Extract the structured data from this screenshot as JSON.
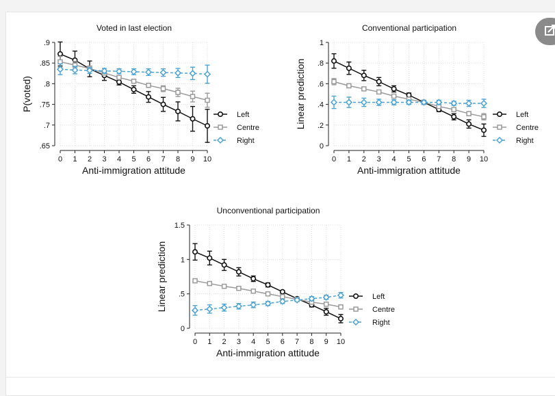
{
  "colors": {
    "left": "#111111",
    "centre": "#9a9a9a",
    "right": "#4aa3d4",
    "grid": "#d4d4d4"
  },
  "chart_data": [
    {
      "type": "line",
      "title": "Voted in last election",
      "xlabel": "Anti-immigration attitude",
      "ylabel": "P(voted)",
      "x": [
        0,
        1,
        2,
        3,
        4,
        5,
        6,
        7,
        8,
        9,
        10
      ],
      "xlim": [
        0,
        10
      ],
      "ylim": [
        0.65,
        0.9
      ],
      "yticks": [
        0.65,
        0.7,
        0.75,
        0.8,
        0.85,
        0.9
      ],
      "ytick_labels": [
        ".65",
        ".7",
        ".75",
        ".8",
        ".85",
        ".9"
      ],
      "legend": "right",
      "series": [
        {
          "name": "Left",
          "values": [
            0.872,
            0.857,
            0.836,
            0.82,
            0.804,
            0.786,
            0.768,
            0.75,
            0.733,
            0.715,
            0.698
          ],
          "lower": [
            0.843,
            0.835,
            0.817,
            0.808,
            0.797,
            0.777,
            0.755,
            0.733,
            0.71,
            0.685,
            0.658
          ],
          "upper": [
            0.901,
            0.879,
            0.855,
            0.832,
            0.811,
            0.795,
            0.781,
            0.767,
            0.756,
            0.745,
            0.738
          ]
        },
        {
          "name": "Centre",
          "values": [
            0.853,
            0.845,
            0.837,
            0.826,
            0.815,
            0.806,
            0.796,
            0.788,
            0.779,
            0.769,
            0.76
          ],
          "lower": [
            0.84,
            0.836,
            0.831,
            0.821,
            0.811,
            0.802,
            0.791,
            0.781,
            0.769,
            0.756,
            0.743
          ],
          "upper": [
            0.866,
            0.854,
            0.843,
            0.831,
            0.819,
            0.81,
            0.801,
            0.795,
            0.789,
            0.782,
            0.777
          ]
        },
        {
          "name": "Right",
          "values": [
            0.835,
            0.833,
            0.832,
            0.831,
            0.83,
            0.829,
            0.828,
            0.827,
            0.826,
            0.825,
            0.823
          ],
          "lower": [
            0.822,
            0.824,
            0.825,
            0.825,
            0.824,
            0.822,
            0.82,
            0.818,
            0.815,
            0.81,
            0.801
          ],
          "upper": [
            0.848,
            0.842,
            0.839,
            0.837,
            0.836,
            0.836,
            0.836,
            0.836,
            0.837,
            0.84,
            0.845
          ]
        }
      ]
    },
    {
      "type": "line",
      "title": "Conventional participation",
      "xlabel": "Anti-immigration attitude",
      "ylabel": "Linear prediction",
      "x": [
        0,
        1,
        2,
        3,
        4,
        5,
        6,
        7,
        8,
        9,
        10
      ],
      "xlim": [
        0,
        10
      ],
      "ylim": [
        0,
        1
      ],
      "yticks": [
        0,
        0.2,
        0.4,
        0.6,
        0.8,
        1
      ],
      "ytick_labels": [
        "0",
        ".2",
        ".4",
        ".6",
        ".8",
        "1"
      ],
      "legend": "right",
      "series": [
        {
          "name": "Left",
          "values": [
            0.82,
            0.75,
            0.68,
            0.62,
            0.55,
            0.49,
            0.42,
            0.35,
            0.28,
            0.21,
            0.15
          ],
          "lower": [
            0.75,
            0.69,
            0.63,
            0.58,
            0.52,
            0.47,
            0.4,
            0.33,
            0.25,
            0.17,
            0.09
          ],
          "upper": [
            0.89,
            0.81,
            0.73,
            0.66,
            0.58,
            0.51,
            0.44,
            0.37,
            0.31,
            0.25,
            0.21
          ]
        },
        {
          "name": "Centre",
          "values": [
            0.62,
            0.58,
            0.55,
            0.52,
            0.48,
            0.45,
            0.42,
            0.38,
            0.35,
            0.31,
            0.28
          ],
          "lower": [
            0.59,
            0.56,
            0.535,
            0.505,
            0.47,
            0.44,
            0.41,
            0.37,
            0.335,
            0.29,
            0.25
          ],
          "upper": [
            0.65,
            0.6,
            0.565,
            0.535,
            0.49,
            0.46,
            0.43,
            0.39,
            0.365,
            0.33,
            0.31
          ]
        },
        {
          "name": "Right",
          "values": [
            0.42,
            0.42,
            0.42,
            0.42,
            0.42,
            0.42,
            0.42,
            0.42,
            0.41,
            0.41,
            0.41
          ],
          "lower": [
            0.36,
            0.37,
            0.38,
            0.39,
            0.395,
            0.4,
            0.405,
            0.4,
            0.39,
            0.38,
            0.37
          ],
          "upper": [
            0.48,
            0.47,
            0.46,
            0.45,
            0.445,
            0.44,
            0.435,
            0.44,
            0.43,
            0.44,
            0.45
          ]
        }
      ]
    },
    {
      "type": "line",
      "title": "Unconventional participation",
      "xlabel": "Anti-immigration attitude",
      "ylabel": "Linear prediction",
      "x": [
        0,
        1,
        2,
        3,
        4,
        5,
        6,
        7,
        8,
        9,
        10
      ],
      "xlim": [
        0,
        10
      ],
      "ylim": [
        0,
        1.5
      ],
      "yticks": [
        0,
        0.5,
        1,
        1.5
      ],
      "ytick_labels": [
        "0",
        ".5",
        "1",
        "1.5"
      ],
      "legend": "right",
      "series": [
        {
          "name": "Left",
          "values": [
            1.11,
            1.02,
            0.92,
            0.82,
            0.72,
            0.63,
            0.53,
            0.43,
            0.34,
            0.24,
            0.14
          ],
          "lower": [
            0.99,
            0.92,
            0.84,
            0.76,
            0.68,
            0.6,
            0.51,
            0.41,
            0.31,
            0.19,
            0.08
          ],
          "upper": [
            1.23,
            1.12,
            1.0,
            0.88,
            0.76,
            0.66,
            0.55,
            0.45,
            0.37,
            0.29,
            0.2
          ]
        },
        {
          "name": "Centre",
          "values": [
            0.69,
            0.65,
            0.61,
            0.58,
            0.54,
            0.5,
            0.46,
            0.42,
            0.38,
            0.35,
            0.31
          ],
          "lower": [
            0.66,
            0.63,
            0.595,
            0.565,
            0.53,
            0.49,
            0.45,
            0.41,
            0.365,
            0.325,
            0.28
          ],
          "upper": [
            0.72,
            0.67,
            0.625,
            0.595,
            0.55,
            0.51,
            0.47,
            0.43,
            0.395,
            0.375,
            0.34
          ]
        },
        {
          "name": "Right",
          "values": [
            0.26,
            0.28,
            0.3,
            0.32,
            0.34,
            0.36,
            0.39,
            0.41,
            0.43,
            0.45,
            0.48
          ],
          "lower": [
            0.19,
            0.22,
            0.25,
            0.28,
            0.3,
            0.33,
            0.36,
            0.39,
            0.4,
            0.42,
            0.44
          ],
          "upper": [
            0.33,
            0.34,
            0.35,
            0.36,
            0.38,
            0.39,
            0.42,
            0.43,
            0.46,
            0.48,
            0.52
          ]
        }
      ]
    }
  ]
}
